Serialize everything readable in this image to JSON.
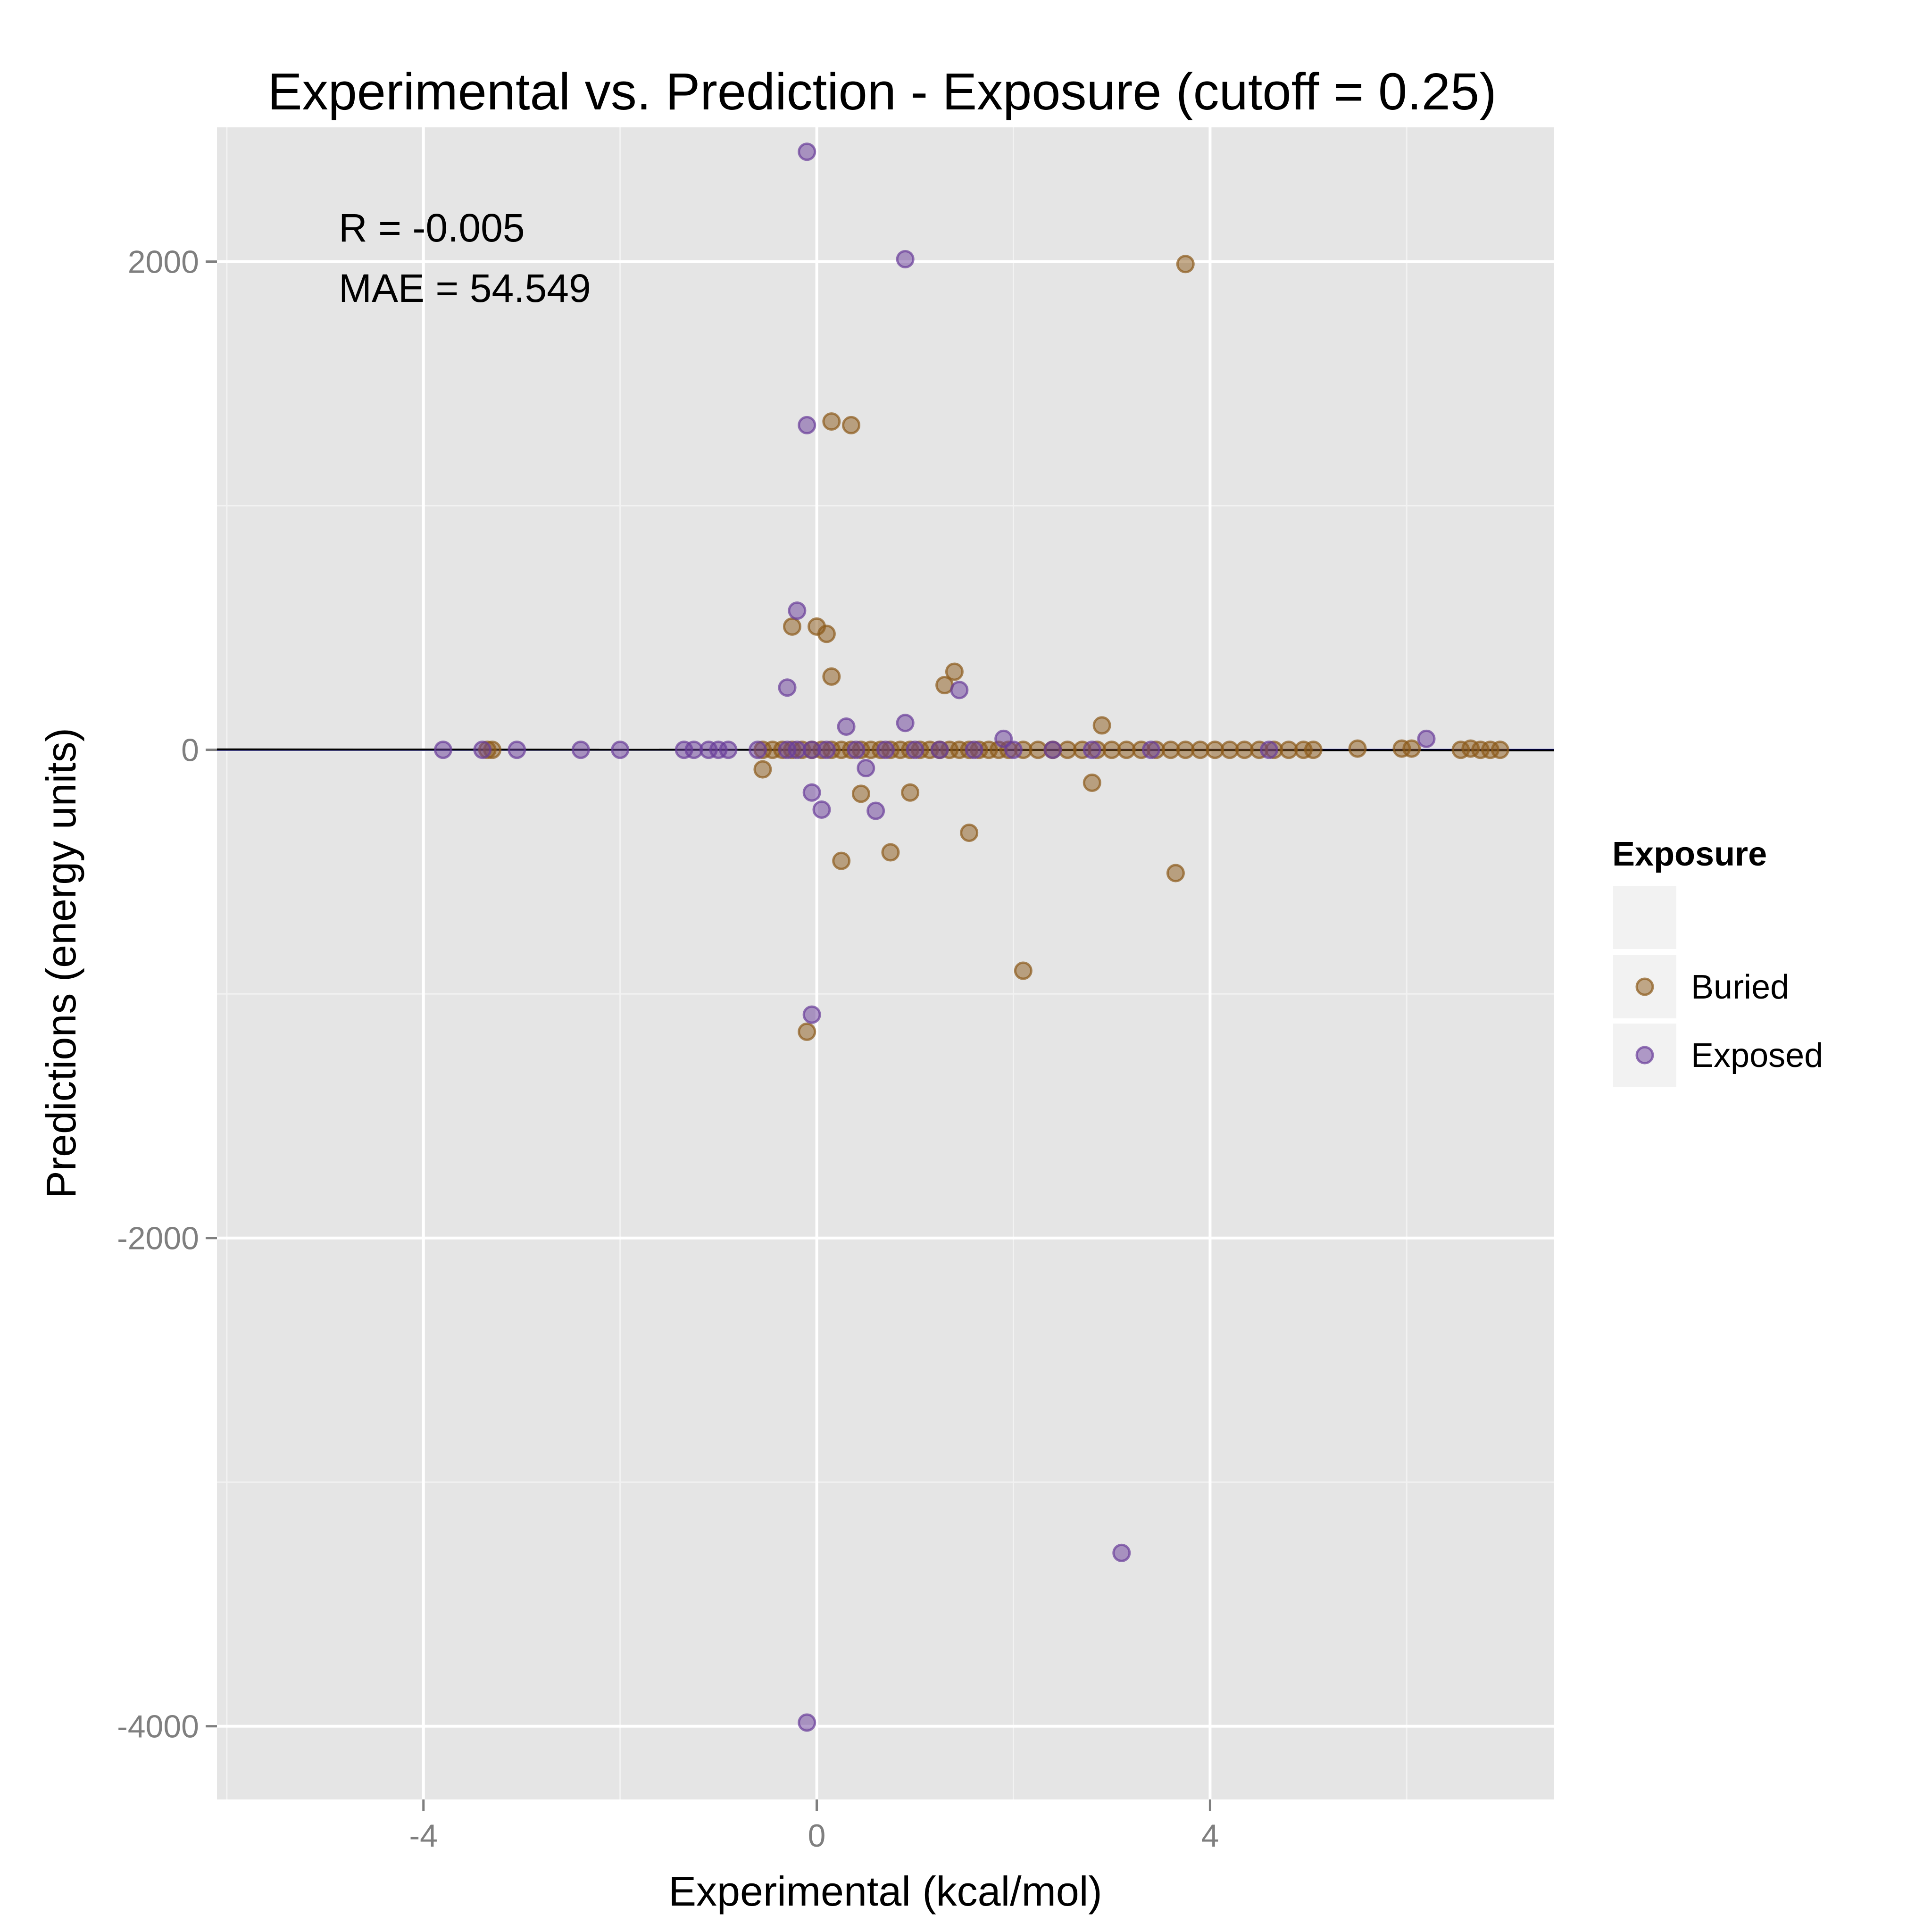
{
  "chart_data": {
    "type": "scatter",
    "title": "Experimental vs. Prediction - Exposure (cutoff = 0.25)",
    "xlabel": "Experimental (kcal/mol)",
    "ylabel": "Predictions (energy units)",
    "xlim": [
      -6.1,
      7.5
    ],
    "ylim": [
      -4300,
      2550
    ],
    "x_ticks": [
      -4,
      0,
      4
    ],
    "y_ticks": [
      -4000,
      -2000,
      0,
      2000
    ],
    "x_tick_labels": [
      "-4",
      "0",
      "4"
    ],
    "y_tick_labels": [
      "-4000",
      "-2000",
      "0",
      "2000"
    ],
    "grid": true,
    "background": "#e5e5e5",
    "annotations": [
      "R = -0.005",
      "MAE = 54.549"
    ],
    "reference_lines": [
      {
        "slope": 0.0,
        "intercept": 0,
        "color": "#000080"
      },
      {
        "slope": -0.3,
        "intercept": 0,
        "color": "#000000"
      }
    ],
    "legend": {
      "title": "Exposure",
      "position": "right",
      "entries": [
        "Buried",
        "Exposed"
      ]
    },
    "series": [
      {
        "name": "Buried",
        "color": "#8b5a19",
        "points": [
          [
            0.15,
            1345
          ],
          [
            0.35,
            1330
          ],
          [
            -0.25,
            505
          ],
          [
            0.0,
            505
          ],
          [
            0.1,
            475
          ],
          [
            0.15,
            300
          ],
          [
            1.4,
            320
          ],
          [
            1.3,
            265
          ],
          [
            2.9,
            100
          ],
          [
            -0.55,
            -80
          ],
          [
            0.45,
            -180
          ],
          [
            0.95,
            -175
          ],
          [
            2.8,
            -135
          ],
          [
            1.55,
            -340
          ],
          [
            0.25,
            -455
          ],
          [
            0.75,
            -420
          ],
          [
            3.65,
            -505
          ],
          [
            2.1,
            -905
          ],
          [
            -0.1,
            -1155
          ],
          [
            3.75,
            1990
          ],
          [
            -3.35,
            0
          ],
          [
            -3.3,
            0
          ],
          [
            -0.55,
            0
          ],
          [
            -0.45,
            0
          ],
          [
            -0.35,
            0
          ],
          [
            -0.25,
            0
          ],
          [
            -0.15,
            0
          ],
          [
            -0.05,
            0
          ],
          [
            0.05,
            0
          ],
          [
            0.15,
            0
          ],
          [
            0.25,
            0
          ],
          [
            0.35,
            0
          ],
          [
            0.45,
            0
          ],
          [
            0.55,
            0
          ],
          [
            0.65,
            0
          ],
          [
            0.75,
            0
          ],
          [
            0.85,
            0
          ],
          [
            0.95,
            0
          ],
          [
            1.05,
            0
          ],
          [
            1.15,
            0
          ],
          [
            1.25,
            0
          ],
          [
            1.35,
            0
          ],
          [
            1.45,
            0
          ],
          [
            1.55,
            0
          ],
          [
            1.65,
            0
          ],
          [
            1.75,
            0
          ],
          [
            1.85,
            0
          ],
          [
            1.95,
            0
          ],
          [
            2.1,
            0
          ],
          [
            2.25,
            0
          ],
          [
            2.4,
            0
          ],
          [
            2.55,
            0
          ],
          [
            2.7,
            0
          ],
          [
            2.85,
            0
          ],
          [
            3.0,
            0
          ],
          [
            3.15,
            0
          ],
          [
            3.3,
            0
          ],
          [
            3.45,
            0
          ],
          [
            3.6,
            0
          ],
          [
            3.75,
            0
          ],
          [
            3.9,
            0
          ],
          [
            4.05,
            0
          ],
          [
            4.2,
            0
          ],
          [
            4.35,
            0
          ],
          [
            4.5,
            0
          ],
          [
            4.65,
            0
          ],
          [
            4.8,
            0
          ],
          [
            4.95,
            0
          ],
          [
            5.05,
            0
          ],
          [
            5.5,
            5
          ],
          [
            5.95,
            5
          ],
          [
            6.05,
            5
          ],
          [
            6.55,
            0
          ],
          [
            6.65,
            5
          ],
          [
            6.75,
            0
          ],
          [
            6.85,
            0
          ],
          [
            6.95,
            0
          ]
        ]
      },
      {
        "name": "Exposed",
        "color": "#6a3d9a",
        "points": [
          [
            -0.1,
            2450
          ],
          [
            0.9,
            2010
          ],
          [
            -0.1,
            1330
          ],
          [
            -0.2,
            570
          ],
          [
            -0.3,
            255
          ],
          [
            1.45,
            245
          ],
          [
            0.3,
            95
          ],
          [
            0.9,
            110
          ],
          [
            1.9,
            45
          ],
          [
            6.2,
            45
          ],
          [
            0.5,
            -75
          ],
          [
            -0.05,
            -175
          ],
          [
            0.05,
            -245
          ],
          [
            0.6,
            -250
          ],
          [
            -0.05,
            -1085
          ],
          [
            3.1,
            -3290
          ],
          [
            -0.1,
            -3985
          ],
          [
            -3.8,
            0
          ],
          [
            -3.4,
            0
          ],
          [
            -3.05,
            0
          ],
          [
            -2.4,
            0
          ],
          [
            -2.0,
            0
          ],
          [
            -1.35,
            0
          ],
          [
            -1.25,
            0
          ],
          [
            -1.1,
            0
          ],
          [
            -1.0,
            0
          ],
          [
            -0.9,
            0
          ],
          [
            -0.6,
            0
          ],
          [
            -0.3,
            0
          ],
          [
            -0.2,
            0
          ],
          [
            -0.05,
            0
          ],
          [
            0.1,
            0
          ],
          [
            0.4,
            0
          ],
          [
            0.7,
            0
          ],
          [
            1.0,
            0
          ],
          [
            1.25,
            0
          ],
          [
            1.6,
            0
          ],
          [
            2.0,
            0
          ],
          [
            2.4,
            0
          ],
          [
            2.8,
            0
          ],
          [
            3.4,
            0
          ],
          [
            4.6,
            0
          ]
        ]
      }
    ]
  }
}
